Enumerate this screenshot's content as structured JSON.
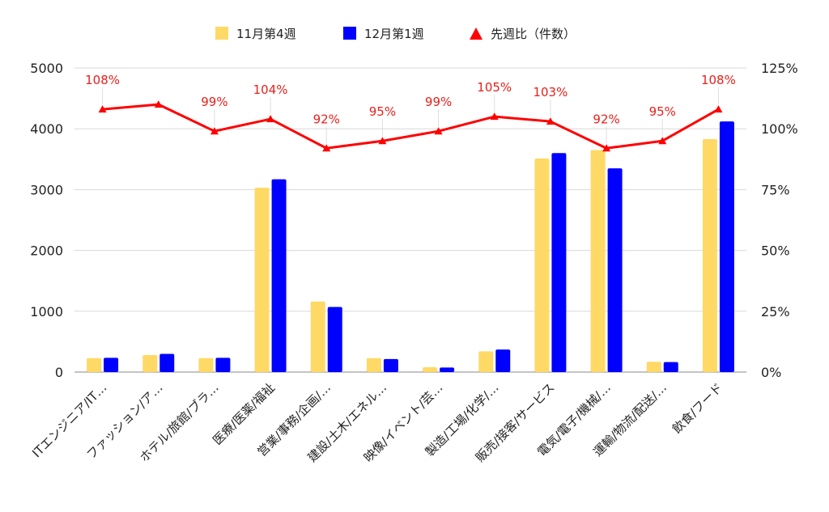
{
  "chart_data": {
    "type": "bar",
    "categories": [
      "ITエンジニア/IT…",
      "ファッション/ア…",
      "ホテル/旅館/ブラ…",
      "医療/医薬/福祉",
      "営業/事務/企画/…",
      "建設/土木/エネル…",
      "映像/イベント/芸…",
      "製造/工場/化学/…",
      "販売/接客/サービス",
      "電気/電子/機械/…",
      "運輸/物流/配送/…",
      "飲食/フード"
    ],
    "series": [
      {
        "name": "11月第4週",
        "color": "#ffd966",
        "values": [
          230,
          280,
          230,
          3030,
          1160,
          230,
          80,
          340,
          3510,
          3650,
          170,
          3830
        ]
      },
      {
        "name": "12月第1週",
        "color": "#0000ff",
        "values": [
          235,
          300,
          235,
          3170,
          1070,
          215,
          75,
          370,
          3600,
          3350,
          165,
          4120
        ]
      }
    ],
    "line_series": {
      "name": "先週比（件数）",
      "color": "#ff0000",
      "values": [
        108,
        110,
        99,
        104,
        92,
        95,
        99,
        105,
        103,
        92,
        95,
        108
      ],
      "labels": [
        "108%",
        "",
        "99%",
        "104%",
        "92%",
        "95%",
        "99%",
        "105%",
        "103%",
        "92%",
        "95%",
        "108%"
      ]
    },
    "y_left": {
      "min": 0,
      "max": 5000,
      "ticks": [
        0,
        1000,
        2000,
        3000,
        4000,
        5000
      ],
      "tick_labels": [
        "0",
        "1000",
        "2000",
        "3000",
        "4000",
        "5000"
      ]
    },
    "y_right": {
      "min": 0,
      "max": 125,
      "ticks": [
        0,
        25,
        50,
        75,
        100,
        125
      ],
      "tick_labels": [
        "0%",
        "25%",
        "50%",
        "75%",
        "100%",
        "125%"
      ]
    },
    "grid": true,
    "legend_position": "top-center",
    "title": "",
    "xlabel": "",
    "ylabel": ""
  }
}
